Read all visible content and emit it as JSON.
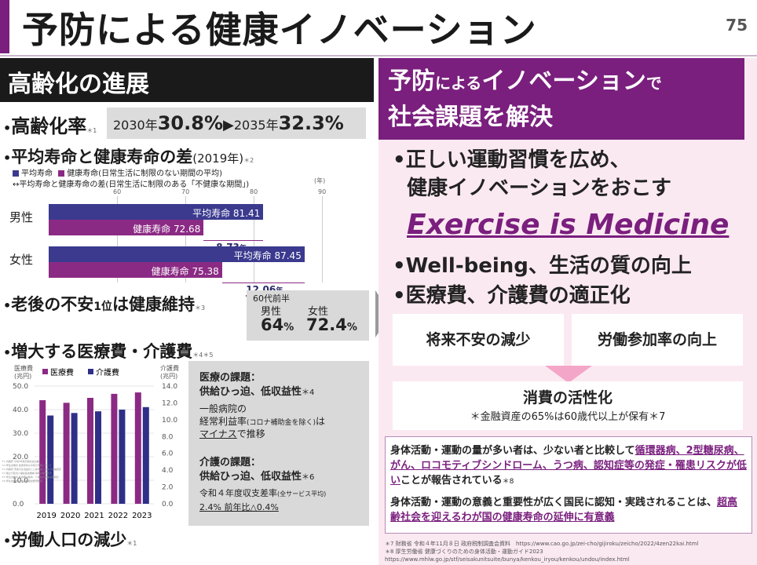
{
  "title": "予防による健康イノベーション",
  "page_number": "75",
  "left": {
    "header": "高齢化の進展",
    "aging": {
      "label": "高齢化率",
      "note": "＊1",
      "y2030_prefix": "2030年",
      "y2030_value": "30.8%",
      "arrow": "▶",
      "y2035_prefix": "2035年",
      "y2035_value": "32.3%"
    },
    "life_gap": {
      "label": "平均寿命と健康寿命の差",
      "year": "(2019年)",
      "note": "＊2",
      "legend_avg": "平均寿命",
      "legend_healthy": "健康寿命(日常生活に制限のない期間の平均)",
      "legend_gap": "↔平均寿命と健康寿命の差(日常生活に制限のある「不健康な期間」)",
      "axis_unit": "(年)",
      "ticks": [
        "60",
        "70",
        "80",
        "90"
      ],
      "rows": [
        {
          "label": "男性",
          "avg_text": "平均寿命 81.41",
          "healthy_text": "健康寿命 72.68",
          "gap": "8.73",
          "gap_unit": "年",
          "avg": 81.41,
          "healthy": 72.68
        },
        {
          "label": "女性",
          "avg_text": "平均寿命 87.45",
          "healthy_text": "健康寿命 75.38",
          "gap": "12.06",
          "gap_unit": "年",
          "avg": 87.45,
          "healthy": 75.38
        }
      ]
    },
    "anxiety": {
      "label_a": "老後の不安",
      "label_b": "1位",
      "label_c": "は健康維持",
      "note": "＊3",
      "age": "60代前半",
      "male_label": "男性",
      "female_label": "女性",
      "male_value": "64",
      "female_value": "72.4",
      "pct": "%"
    },
    "costs": {
      "label": "増大する医療費・介護費",
      "note": "＊4＊5",
      "y_left_unit": "医療費\n(兆円)",
      "y_right_unit": "介護費\n(兆円)",
      "legend_medical": "医療費",
      "legend_care": "介護費",
      "left_ticks": [
        "50.0",
        "40.0",
        "30.0",
        "20.0",
        "10.0",
        "0.0"
      ],
      "right_ticks": [
        "14.0",
        "12.0",
        "10.0",
        "8.0",
        "6.0",
        "4.0",
        "2.0",
        "0.0"
      ],
      "medical_title": "医療の課題：",
      "medical_sub": "供給ひっ迫、低収益性",
      "medical_note": "＊4",
      "medical_desc1": "一般病院の",
      "medical_desc2": "経常利益率",
      "medical_desc3": "(コロナ補助金を除く)",
      "medical_desc4": "は",
      "medical_desc5": "マイナス",
      "medical_desc6": "で推移",
      "care_title": "介護の課題：",
      "care_sub": "供給ひっ迫、低収益性",
      "care_note": "＊6",
      "care_desc1": "令和４年度収支差率",
      "care_desc2": "(全サービス平均)",
      "care_desc3": "2.4% 前年比△0.4%"
    },
    "labor": {
      "label": "労働人口の減少",
      "note": "＊1"
    },
    "footnotes": [
      "＊1 内閣府 令和5年版高齢社会白書",
      "＊2 厚生労働省 健康寿命の令和元年値について",
      "＊3 内閣府 老後の生活設計と公的年金に関する世論調査",
      "＊4 独立行政法人福祉医療機構 病院の経営状況",
      "＊5 厚生労働省 医療費の動向・介護給付費等実態統計",
      "＊6 厚生労働省 介護事業経営概況調査"
    ]
  },
  "right": {
    "header_1a": "予防",
    "header_1b": "による",
    "header_1c": "イノベーション",
    "header_1d": "で",
    "header_2": "社会課題を解決",
    "bullet1_line1": "•正しい運動習慣を広め、",
    "bullet1_line2": "健康イノベーションをおこす",
    "eim": "Exercise is Medicine",
    "bullet2": "•Well-being、生活の質の向上",
    "bullet3": "•医療費、介護費の適正化",
    "card1": "将来不安の減少",
    "card2": "労働参加率の向上",
    "card3_title": "消費の活性化",
    "card3_sub": "＊金融資産の65%は60歳代以上が保有＊7",
    "evidence1_a": "身体活動・運動の量が多い者は、少ない者と比較して",
    "evidence1_b": "循環器病、2型糖尿病、がん、ロコモティブシンドローム、うつ病、認知症等の発症・罹患リスクが低い",
    "evidence1_c": "ことが報告されている",
    "evidence1_note": "＊8",
    "evidence2_a": "身体活動・運動の意義と重要性が広く国民に認知・実践されることは、",
    "evidence2_b": "超高齢社会を迎えるわが国の健康寿命の延伸に有意義",
    "footnote7": "＊7 財務省 令和４年11月８日 政府税制調査会資料　https://www.cao.go.jp/zei-cho/gijiroku/zeicho/2022/4zen22kai.html",
    "footnote8": "＊8 厚生労働省 健康づくりのための身体活動・運動ガイド2023",
    "footnote8_url": "https://www.mhlw.go.jp/stf/seisakunitsuite/bunya/kenkou_iryou/kenkou/undou/index.html"
  },
  "colors": {
    "purple": "#7a1f7e",
    "navy": "#3b3a8f",
    "bar_purple": "#8b2a84",
    "pink_bg": "#fbe9f1",
    "dark": "#1a1a1a"
  },
  "chart_data": [
    {
      "type": "bar",
      "title": "",
      "categories": [
        "男性",
        "女性"
      ],
      "series": [
        {
          "name": "平均寿命",
          "values": [
            81.41,
            87.45
          ]
        },
        {
          "name": "健康寿命",
          "values": [
            72.68,
            75.38
          ]
        }
      ],
      "xlim": [
        50,
        90
      ]
    },
    {
      "type": "bar",
      "categories": [
        "2019",
        "2020",
        "2021",
        "2022",
        "2023"
      ],
      "series": [
        {
          "name": "医療費",
          "axis": "left",
          "values": [
            44.0,
            42.9,
            45.0,
            46.7,
            47.3
          ]
        },
        {
          "name": "介護費",
          "axis": "right",
          "values": [
            10.5,
            10.8,
            11.0,
            11.2,
            11.5
          ]
        }
      ],
      "ylim_left": [
        0,
        50
      ],
      "ylim_right": [
        0,
        14
      ]
    }
  ]
}
